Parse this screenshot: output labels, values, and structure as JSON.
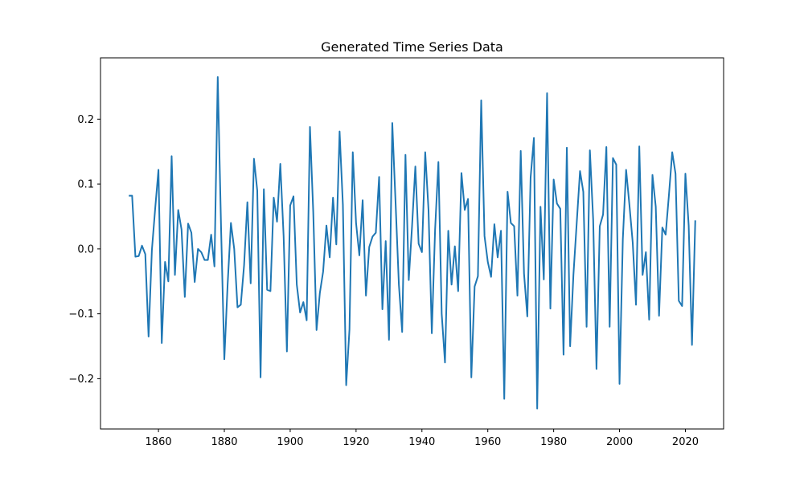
{
  "chart_data": {
    "type": "line",
    "title": "Generated Time Series Data",
    "xlabel": "",
    "ylabel": "",
    "xlim": [
      1842.4,
      2031.6
    ],
    "ylim": [
      -0.2775,
      0.2945
    ],
    "xticks": [
      1860,
      1880,
      1900,
      1920,
      1940,
      1960,
      1980,
      2000,
      2020
    ],
    "yticks": [
      -0.2,
      -0.1,
      0.0,
      0.1,
      0.2
    ],
    "ytick_labels": [
      "−0.2",
      "−0.1",
      "0.0",
      "0.1",
      "0.2"
    ],
    "grid": false,
    "legend": "none",
    "line_color": "#1f77b4",
    "series": [
      {
        "x": [
          1851,
          1852,
          1853,
          1854,
          1855,
          1856,
          1857,
          1858,
          1859,
          1860,
          1861,
          1862,
          1863,
          1864,
          1865,
          1866,
          1867,
          1868,
          1869,
          1870,
          1871,
          1872,
          1873,
          1874,
          1875,
          1876,
          1877,
          1878,
          1879,
          1880,
          1881,
          1882,
          1883,
          1884,
          1885,
          1886,
          1887,
          1888,
          1889,
          1890,
          1891,
          1892,
          1893,
          1894,
          1895,
          1896,
          1897,
          1898,
          1899,
          1900,
          1901,
          1902,
          1903,
          1904,
          1905,
          1906,
          1907,
          1908,
          1909,
          1910,
          1911,
          1912,
          1913,
          1914,
          1915,
          1916,
          1917,
          1918,
          1919,
          1920,
          1921,
          1922,
          1923,
          1924,
          1925,
          1926,
          1927,
          1928,
          1929,
          1930,
          1931,
          1932,
          1933,
          1934,
          1935,
          1936,
          1937,
          1938,
          1939,
          1940,
          1941,
          1942,
          1943,
          1944,
          1945,
          1946,
          1947,
          1948,
          1949,
          1950,
          1951,
          1952,
          1953,
          1954,
          1955,
          1956,
          1957,
          1958,
          1959,
          1960,
          1961,
          1962,
          1963,
          1964,
          1965,
          1966,
          1967,
          1968,
          1969,
          1970,
          1971,
          1972,
          1973,
          1974,
          1975,
          1976,
          1977,
          1978,
          1979,
          1980,
          1981,
          1982,
          1983,
          1984,
          1985,
          1986,
          1987,
          1988,
          1989,
          1990,
          1991,
          1992,
          1993,
          1994,
          1995,
          1996,
          1997,
          1998,
          1999,
          2000,
          2001,
          2002,
          2003,
          2004,
          2005,
          2006,
          2007,
          2008,
          2009,
          2010,
          2011,
          2012,
          2013,
          2014,
          2015,
          2016,
          2017,
          2018,
          2019,
          2020,
          2021,
          2022,
          2023
        ],
        "values": [
          0.082,
          0.082,
          -0.012,
          -0.011,
          0.005,
          -0.008,
          -0.135,
          -0.002,
          0.062,
          0.122,
          -0.145,
          -0.02,
          -0.05,
          0.143,
          -0.04,
          0.06,
          0.03,
          -0.074,
          0.039,
          0.025,
          -0.051,
          0.0,
          -0.005,
          -0.017,
          -0.017,
          0.022,
          -0.027,
          0.265,
          0.035,
          -0.17,
          -0.055,
          0.04,
          0.0,
          -0.09,
          -0.086,
          -0.025,
          0.072,
          -0.053,
          0.139,
          0.09,
          -0.198,
          0.092,
          -0.063,
          -0.065,
          0.079,
          0.042,
          0.131,
          0.02,
          -0.158,
          0.067,
          0.081,
          -0.055,
          -0.098,
          -0.082,
          -0.11,
          0.188,
          0.057,
          -0.125,
          -0.068,
          -0.035,
          0.036,
          -0.013,
          0.079,
          0.007,
          0.181,
          0.068,
          -0.21,
          -0.124,
          0.149,
          0.04,
          -0.01,
          0.075,
          -0.072,
          0.003,
          0.019,
          0.025,
          0.111,
          -0.093,
          0.012,
          -0.14,
          0.194,
          0.071,
          -0.055,
          -0.128,
          0.145,
          -0.048,
          0.035,
          0.127,
          0.008,
          -0.005,
          0.149,
          0.06,
          -0.13,
          0.03,
          0.134,
          -0.1,
          -0.175,
          0.028,
          -0.055,
          0.004,
          -0.065,
          0.117,
          0.06,
          0.077,
          -0.198,
          -0.058,
          -0.042,
          0.229,
          0.02,
          -0.02,
          -0.043,
          0.038,
          -0.013,
          0.028,
          -0.231,
          0.088,
          0.04,
          0.035,
          -0.072,
          0.151,
          -0.038,
          -0.104,
          0.11,
          0.171,
          -0.246,
          0.065,
          -0.047,
          0.24,
          -0.092,
          0.107,
          0.07,
          0.062,
          -0.163,
          0.156,
          -0.15,
          -0.04,
          0.04,
          0.12,
          0.088,
          -0.12,
          0.152,
          0.045,
          -0.185,
          0.035,
          0.053,
          0.157,
          -0.12,
          0.14,
          0.13,
          -0.208,
          0.015,
          0.122,
          0.068,
          0.01,
          -0.086,
          0.158,
          -0.04,
          -0.005,
          -0.109,
          0.114,
          0.065,
          -0.103,
          0.033,
          0.022,
          0.083,
          0.149,
          0.116,
          -0.08,
          -0.088,
          0.116,
          0.036,
          -0.148,
          0.044
        ]
      }
    ]
  }
}
